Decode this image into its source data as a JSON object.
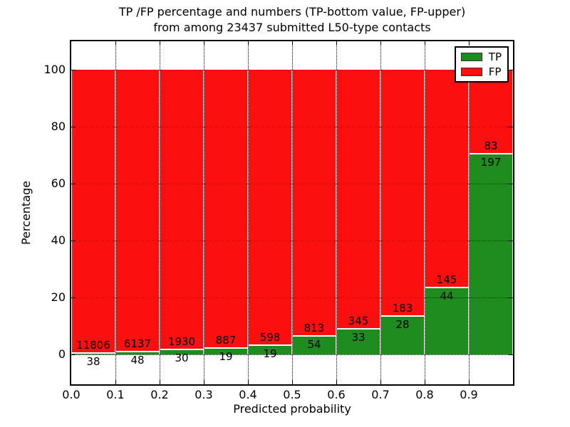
{
  "title": {
    "line1": "TP /FP percentage and numbers (TP-bottom value, FP-upper)",
    "line2": "from among 23437 submitted L50-type contacts"
  },
  "axes": {
    "xlabel": "Predicted probability",
    "ylabel": "Percentage",
    "x_tick_labels": [
      "0.0",
      "0.1",
      "0.2",
      "0.3",
      "0.4",
      "0.5",
      "0.6",
      "0.7",
      "0.8",
      "0.9"
    ],
    "y_tick_labels": [
      "0",
      "20",
      "40",
      "60",
      "80",
      "100"
    ],
    "y_tick_values": [
      0,
      20,
      40,
      60,
      80,
      100
    ]
  },
  "legend": {
    "position": "upper-right",
    "entries": [
      {
        "label": "TP",
        "color": "#1f8c1f"
      },
      {
        "label": "FP",
        "color": "#fb0f0f"
      }
    ]
  },
  "colors": {
    "tp_green": "#1f8c1f",
    "fp_red": "#fb0f0f",
    "bar_edge": "#ffffff",
    "grid": "#000000"
  },
  "chart_data": {
    "type": "bar",
    "stacked": true,
    "normalized": "percent (each bin sums to 100)",
    "title": "TP /FP percentage and numbers (TP-bottom value, FP-upper) from among 23437 submitted L50-type contacts",
    "xlabel": "Predicted probability",
    "ylabel": "Percentage",
    "total_contacts": 23437,
    "bin_edges": [
      0.0,
      0.1,
      0.2,
      0.3,
      0.4,
      0.5,
      0.6,
      0.7,
      0.8,
      0.9,
      1.0
    ],
    "categories": [
      "0.0-0.1",
      "0.1-0.2",
      "0.2-0.3",
      "0.3-0.4",
      "0.4-0.5",
      "0.5-0.6",
      "0.6-0.7",
      "0.7-0.8",
      "0.8-0.9",
      "0.9-1.0"
    ],
    "series": [
      {
        "name": "TP",
        "color": "#1f8c1f",
        "values": [
          38,
          48,
          30,
          19,
          19,
          54,
          33,
          28,
          44,
          197
        ]
      },
      {
        "name": "FP",
        "color": "#fb0f0f",
        "values": [
          11806,
          6137,
          1930,
          887,
          598,
          813,
          345,
          183,
          145,
          83
        ]
      }
    ],
    "tp_percent_by_bin": [
      0.32,
      0.78,
      1.53,
      2.1,
      3.08,
      6.23,
      8.73,
      13.27,
      23.28,
      70.36
    ],
    "xlim": [
      0.0,
      1.0
    ],
    "ylim": [
      -10.5,
      110
    ],
    "grid": "dotted black, x every 0.1, y every 20",
    "legend_position": "upper right"
  }
}
